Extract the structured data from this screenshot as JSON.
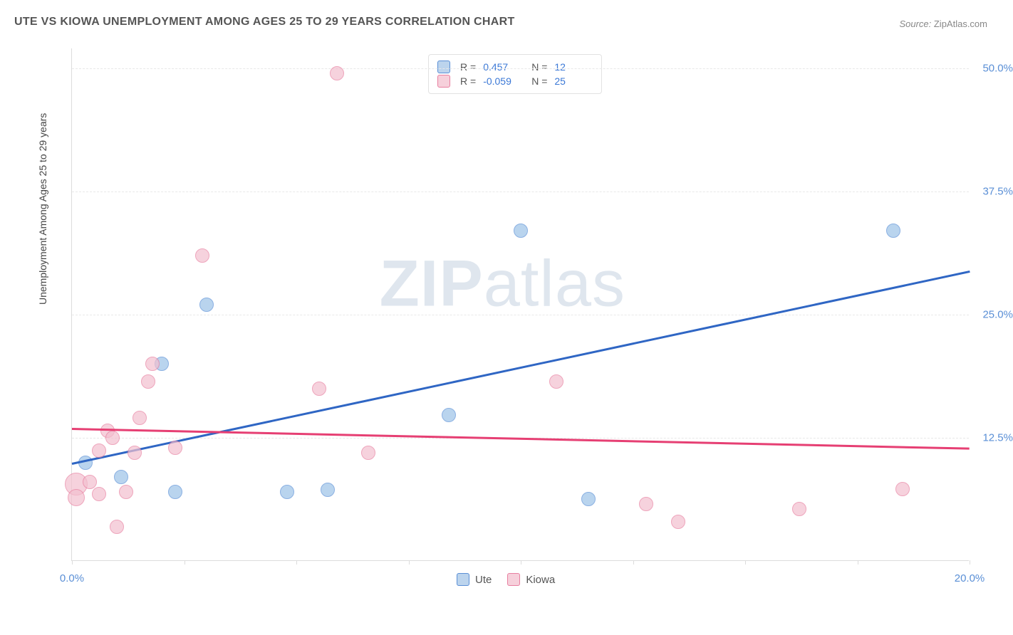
{
  "title": "UTE VS KIOWA UNEMPLOYMENT AMONG AGES 25 TO 29 YEARS CORRELATION CHART",
  "source_prefix": "Source: ",
  "source_name": "ZipAtlas.com",
  "watermark_a": "ZIP",
  "watermark_b": "atlas",
  "chart": {
    "type": "scatter",
    "ylabel": "Unemployment Among Ages 25 to 29 years",
    "background_color": "#ffffff",
    "grid_color": "#e8e8e8",
    "axis_color": "#dcdcdc",
    "tick_label_color": "#5a8fd6",
    "xlim": [
      0,
      20
    ],
    "ylim": [
      0,
      52
    ],
    "x_ticks": [
      0,
      2.5,
      5,
      7.5,
      10,
      12.5,
      15,
      17.5,
      20
    ],
    "x_tick_labels": {
      "0": "0.0%",
      "20": "20.0%"
    },
    "y_gridlines": [
      12.5,
      25.0,
      37.5,
      50.0
    ],
    "y_tick_labels": [
      "12.5%",
      "25.0%",
      "37.5%",
      "50.0%"
    ],
    "point_radius": 10,
    "point_fill_opacity": 0.35,
    "point_stroke_width": 1.5,
    "series": [
      {
        "name": "Ute",
        "color_fill": "#9cc2e8",
        "color_stroke": "#5a8fd6",
        "legend_swatch_fill": "#bcd4ed",
        "legend_swatch_stroke": "#5a8fd6",
        "R": "0.457",
        "N": "12",
        "trend": {
          "x1": 0,
          "y1": 10.0,
          "x2": 20,
          "y2": 29.5,
          "color": "#2f66c4",
          "width": 3
        },
        "points": [
          {
            "x": 0.3,
            "y": 10.0,
            "r": 10
          },
          {
            "x": 1.1,
            "y": 8.5,
            "r": 10
          },
          {
            "x": 2.0,
            "y": 20.0,
            "r": 10
          },
          {
            "x": 2.3,
            "y": 7.0,
            "r": 10
          },
          {
            "x": 3.0,
            "y": 26.0,
            "r": 10
          },
          {
            "x": 4.8,
            "y": 7.0,
            "r": 10
          },
          {
            "x": 5.7,
            "y": 7.2,
            "r": 10
          },
          {
            "x": 8.4,
            "y": 14.8,
            "r": 10
          },
          {
            "x": 10.0,
            "y": 33.5,
            "r": 10
          },
          {
            "x": 11.5,
            "y": 6.3,
            "r": 10
          },
          {
            "x": 18.3,
            "y": 33.5,
            "r": 10
          }
        ]
      },
      {
        "name": "Kiowa",
        "color_fill": "#f3c0cf",
        "color_stroke": "#e87fa0",
        "legend_swatch_fill": "#f6d0db",
        "legend_swatch_stroke": "#e87fa0",
        "R": "-0.059",
        "N": "25",
        "trend": {
          "x1": 0,
          "y1": 13.5,
          "x2": 20,
          "y2": 11.5,
          "color": "#e63f73",
          "width": 3
        },
        "points": [
          {
            "x": 0.1,
            "y": 7.8,
            "r": 16
          },
          {
            "x": 0.1,
            "y": 6.4,
            "r": 12
          },
          {
            "x": 0.4,
            "y": 8.0,
            "r": 10
          },
          {
            "x": 0.6,
            "y": 6.8,
            "r": 10
          },
          {
            "x": 0.6,
            "y": 11.2,
            "r": 10
          },
          {
            "x": 0.8,
            "y": 13.2,
            "r": 10
          },
          {
            "x": 0.9,
            "y": 12.5,
            "r": 10
          },
          {
            "x": 1.0,
            "y": 3.5,
            "r": 10
          },
          {
            "x": 1.2,
            "y": 7.0,
            "r": 10
          },
          {
            "x": 1.4,
            "y": 11.0,
            "r": 10
          },
          {
            "x": 1.5,
            "y": 14.5,
            "r": 10
          },
          {
            "x": 1.7,
            "y": 18.2,
            "r": 10
          },
          {
            "x": 1.8,
            "y": 20.0,
            "r": 10
          },
          {
            "x": 2.3,
            "y": 11.5,
            "r": 10
          },
          {
            "x": 2.9,
            "y": 31.0,
            "r": 10
          },
          {
            "x": 5.5,
            "y": 17.5,
            "r": 10
          },
          {
            "x": 5.9,
            "y": 49.5,
            "r": 10
          },
          {
            "x": 6.6,
            "y": 11.0,
            "r": 10
          },
          {
            "x": 10.8,
            "y": 18.2,
            "r": 10
          },
          {
            "x": 12.8,
            "y": 5.8,
            "r": 10
          },
          {
            "x": 13.5,
            "y": 4.0,
            "r": 10
          },
          {
            "x": 16.2,
            "y": 5.3,
            "r": 10
          },
          {
            "x": 18.5,
            "y": 7.3,
            "r": 10
          }
        ]
      }
    ],
    "legend_top_label_R": "R =",
    "legend_top_label_N": "N ="
  }
}
